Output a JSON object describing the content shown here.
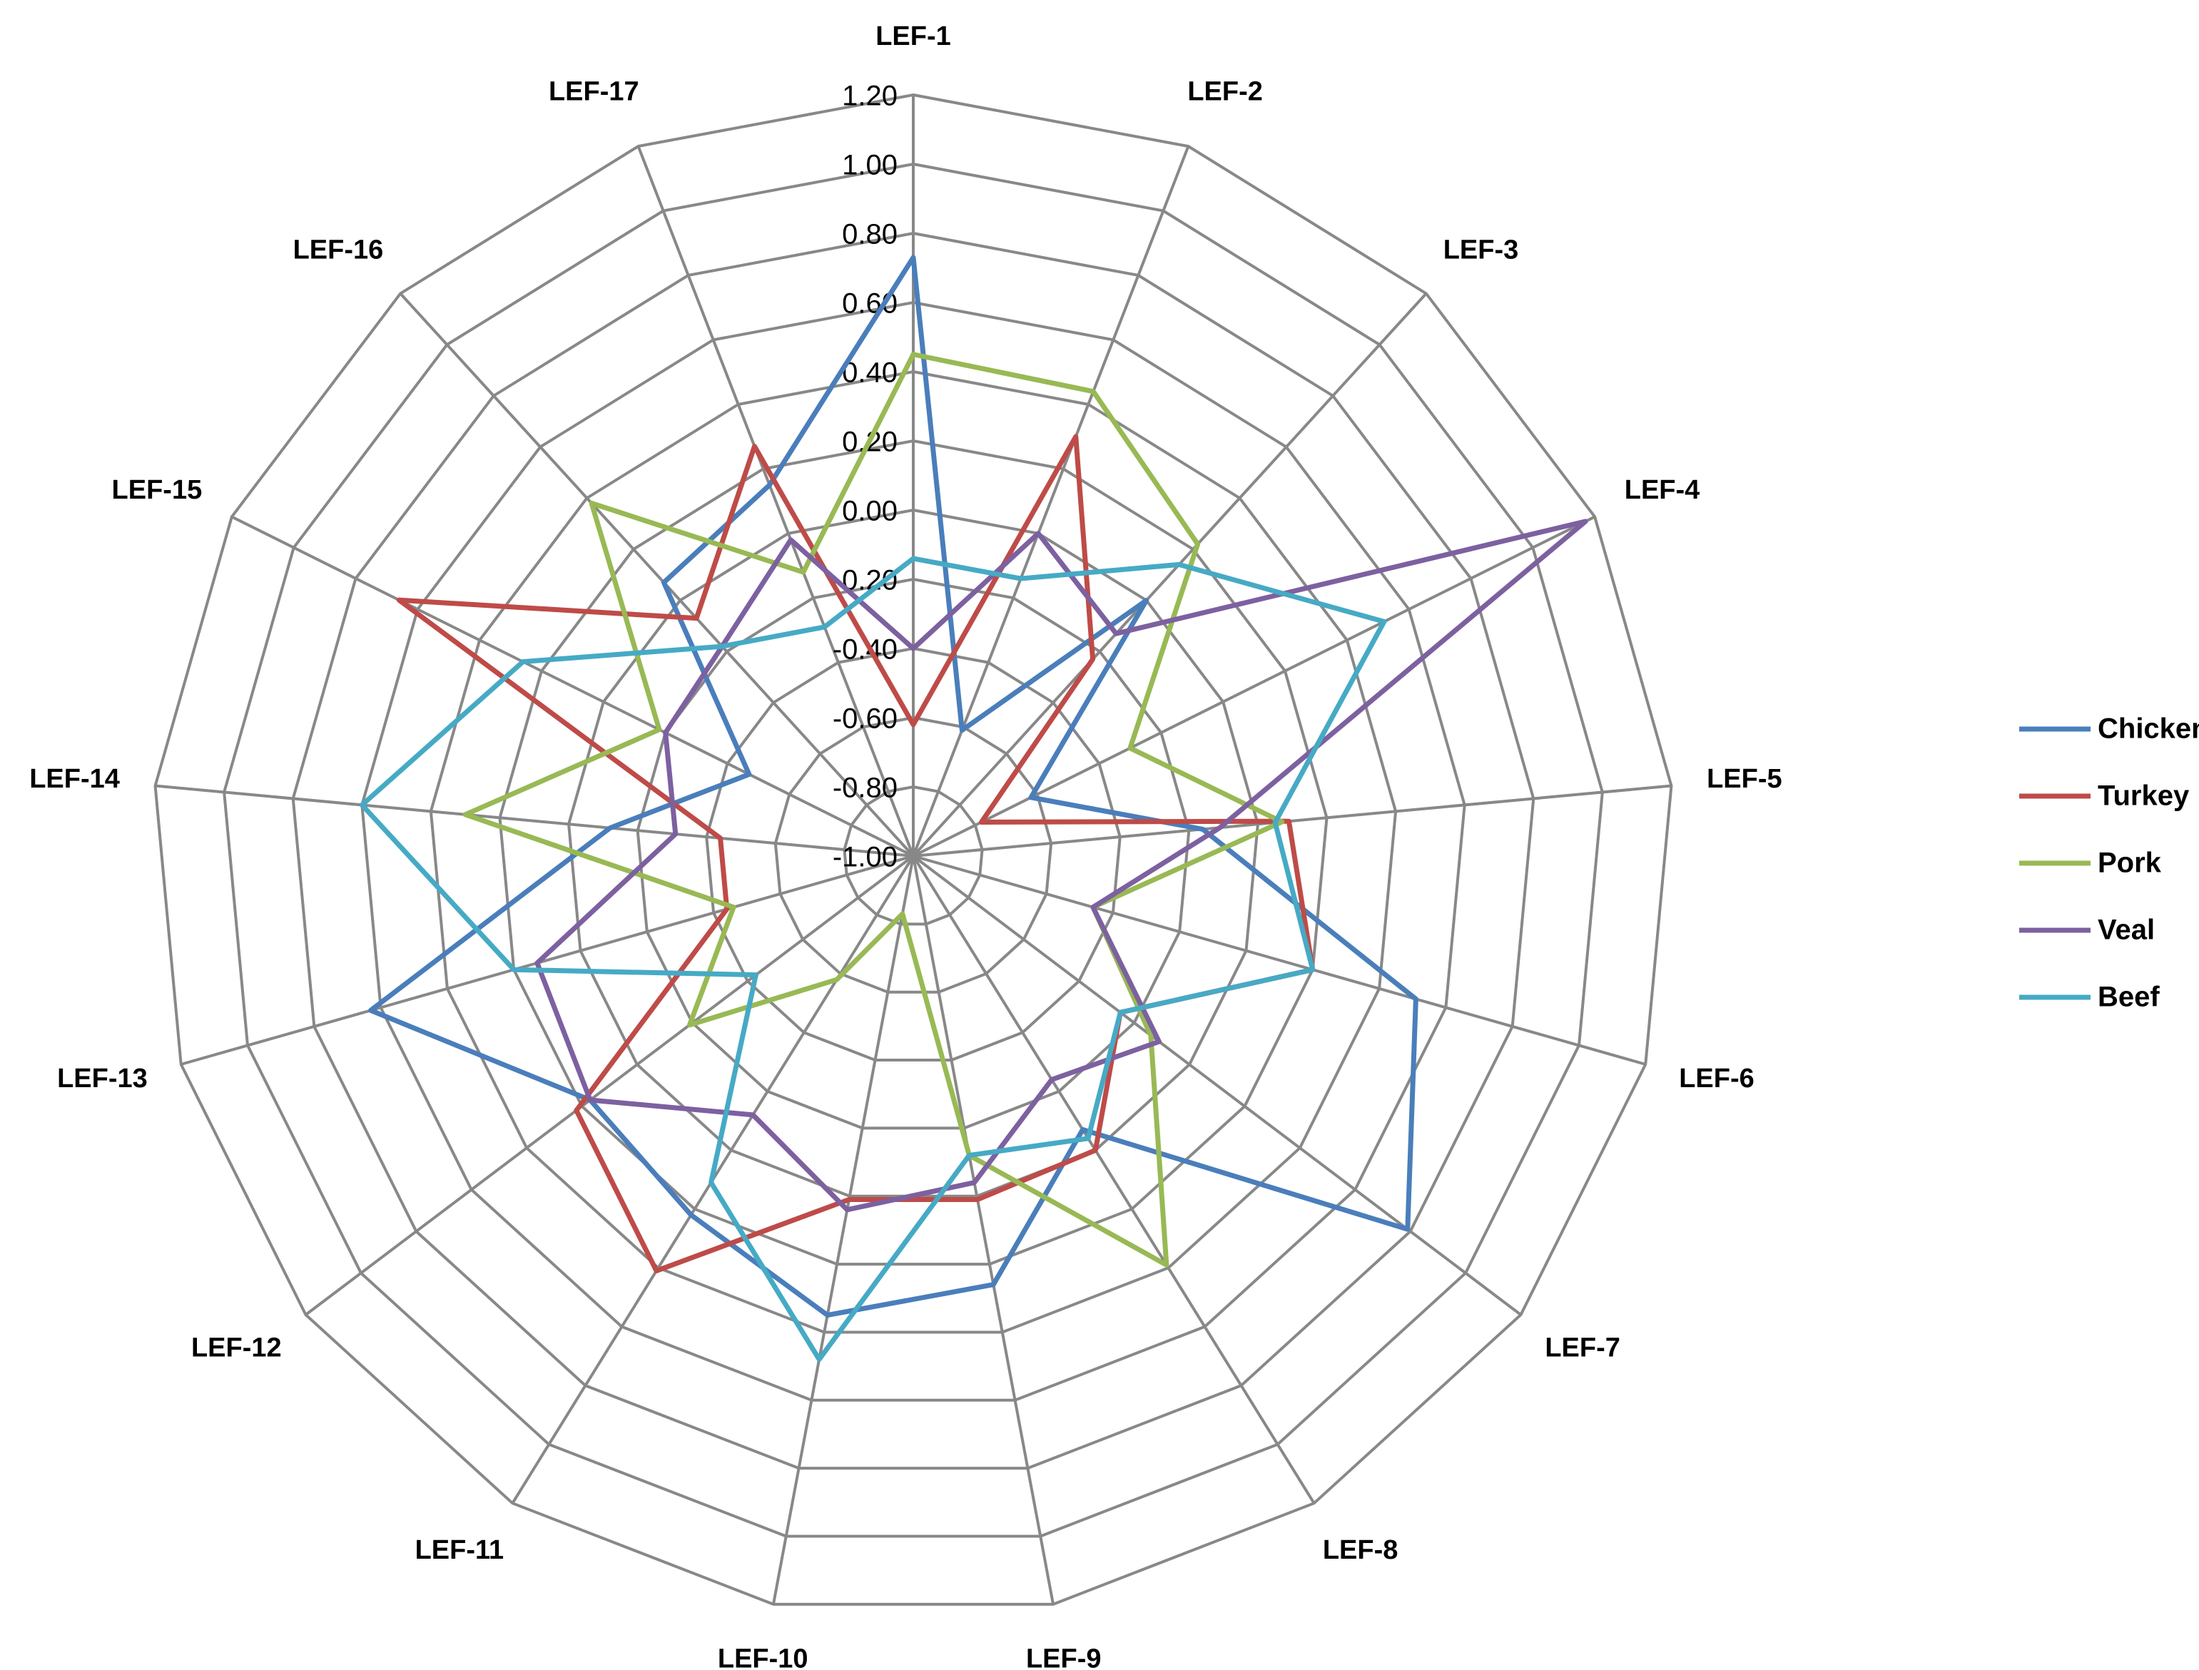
{
  "chart_data": {
    "type": "radar",
    "categories": [
      "LEF-1",
      "LEF-2",
      "LEF-3",
      "LEF-4",
      "LEF-5",
      "LEF-6",
      "LEF-7",
      "LEF-8",
      "LEF-9",
      "LEF-10",
      "LEF-11",
      "LEF-12",
      "LEF-13",
      "LEF-14",
      "LEF-15",
      "LEF-16",
      "LEF-17"
    ],
    "ylim": [
      -1.0,
      1.2
    ],
    "yticks": [
      {
        "value": -1.0,
        "label": "-1.00"
      },
      {
        "value": -0.8,
        "label": "-0.80"
      },
      {
        "value": -0.6,
        "label": "-0.60"
      },
      {
        "value": -0.4,
        "label": "-0.40"
      },
      {
        "value": -0.2,
        "label": "-0.20"
      },
      {
        "value": 0.0,
        "label": "0.00"
      },
      {
        "value": 0.2,
        "label": "0.20"
      },
      {
        "value": 0.4,
        "label": "0.40"
      },
      {
        "value": 0.6,
        "label": "0.60"
      },
      {
        "value": 0.8,
        "label": "0.80"
      },
      {
        "value": 1.0,
        "label": "1.00"
      },
      {
        "value": 1.2,
        "label": "1.20"
      }
    ],
    "grid": true,
    "legend": "right",
    "series": [
      {
        "name": "Chicken",
        "color": "#4a7ebb",
        "values": [
          0.73,
          -0.61,
          0.0,
          -0.62,
          -0.16,
          0.51,
          0.79,
          -0.07,
          0.26,
          0.35,
          0.22,
          0.17,
          0.63,
          -0.12,
          -0.47,
          0.07,
          0.15
        ]
      },
      {
        "name": "Turkey",
        "color": "#be4b48",
        "values": [
          -0.62,
          0.3,
          -0.23,
          -0.78,
          0.09,
          0.2,
          -0.25,
          0.0,
          0.01,
          0.01,
          0.41,
          0.22,
          -0.44,
          -0.44,
          0.66,
          -0.07,
          0.27
        ]
      },
      {
        "name": "Pork",
        "color": "#98b954",
        "values": [
          0.45,
          0.44,
          0.22,
          -0.3,
          0.07,
          -0.46,
          -0.14,
          0.39,
          -0.12,
          -0.83,
          -0.58,
          -0.19,
          -0.46,
          0.3,
          -0.18,
          0.38,
          -0.12
        ]
      },
      {
        "name": "Veal",
        "color": "#7d60a0",
        "values": [
          -0.4,
          0.0,
          -0.13,
          1.17,
          -0.11,
          -0.46,
          -0.11,
          -0.24,
          -0.04,
          0.04,
          -0.12,
          0.17,
          0.13,
          -0.31,
          -0.2,
          -0.18,
          -0.02
        ]
      },
      {
        "name": "Beef",
        "color": "#46aac5",
        "values": [
          -0.14,
          -0.14,
          0.14,
          0.52,
          0.05,
          0.2,
          -0.25,
          -0.04,
          -0.12,
          0.48,
          0.11,
          -0.43,
          0.2,
          0.6,
          0.26,
          -0.18,
          -0.29
        ]
      }
    ]
  }
}
